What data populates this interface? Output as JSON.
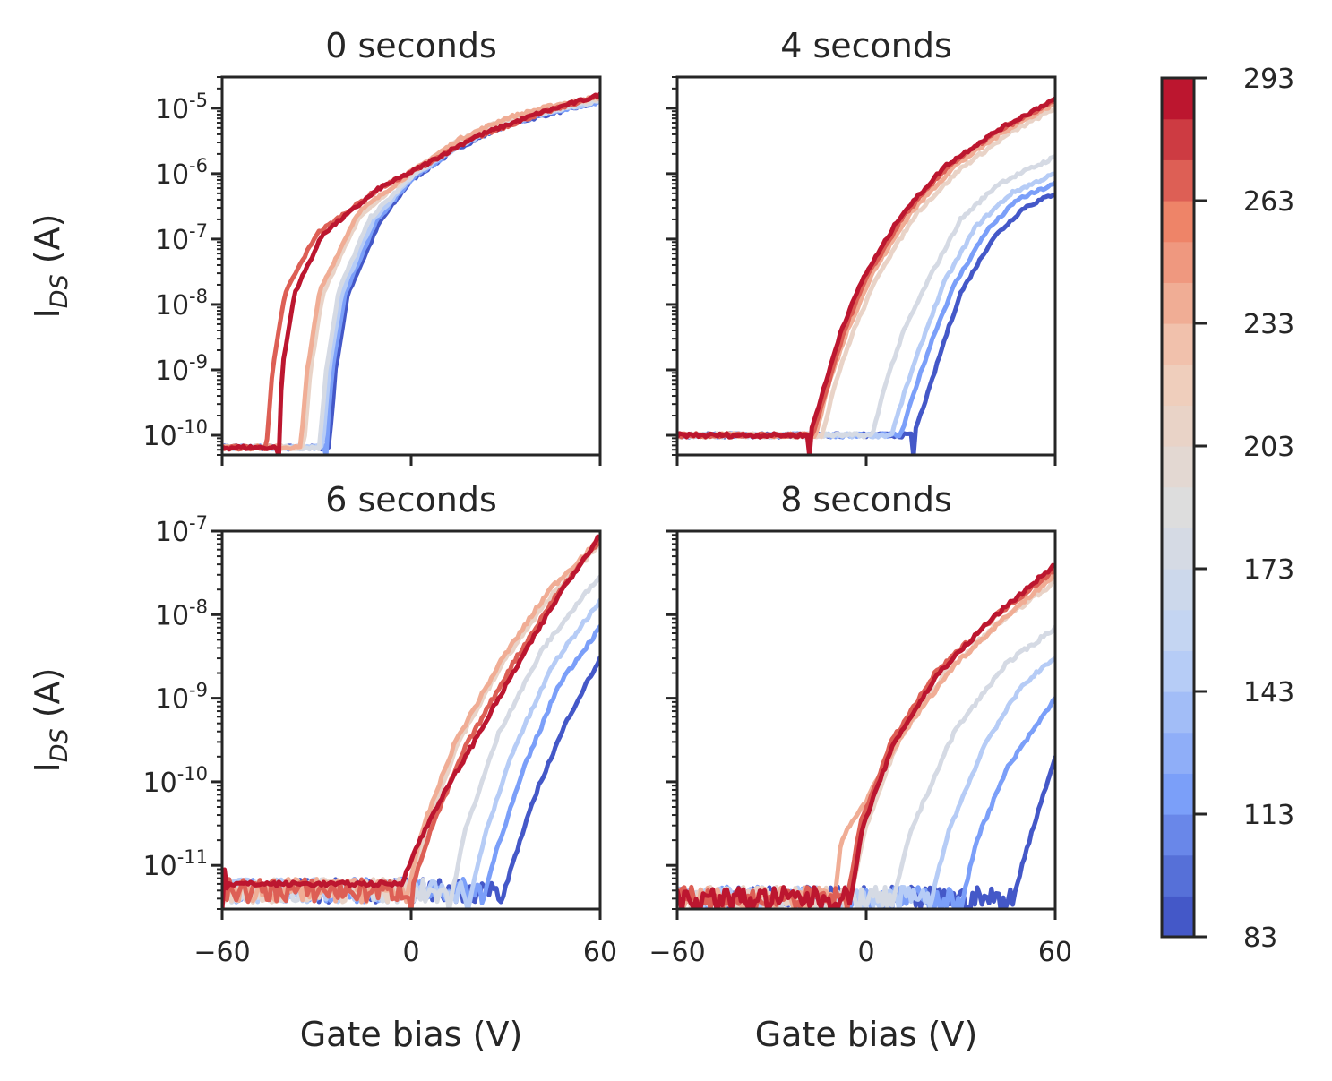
{
  "chart_data": {
    "type": "line",
    "shared_xlabel": "Gate bias (V)",
    "shared_ylabel": "I_DS (A)",
    "x_range": [
      -60,
      60
    ],
    "x_ticks": [
      "−60",
      "0",
      "60"
    ],
    "y_scale": "log",
    "legend": "colorbar-right",
    "grid": false,
    "colorbar": {
      "range": [
        83,
        293
      ],
      "ticks": [
        "83",
        "113",
        "143",
        "173",
        "203",
        "233",
        "263",
        "293"
      ],
      "colormap": "coolwarm",
      "colormap_colors": [
        "#3b4cc0",
        "#7b9ff9",
        "#c0d4f5",
        "#dddddd",
        "#f2cbb7",
        "#ee8468",
        "#b40426"
      ],
      "levels": 21
    },
    "panels": [
      {
        "title": "0 seconds",
        "ylim": [
          5e-11,
          3e-05
        ],
        "y_ticks": [
          1e-10,
          1e-09,
          1e-08,
          1e-07,
          1e-06,
          1e-05
        ],
        "y_ticklabels": [
          {
            "base": "10",
            "exp": "-10"
          },
          {
            "base": "10",
            "exp": "-9"
          },
          {
            "base": "10",
            "exp": "-8"
          },
          {
            "base": "10",
            "exp": "-7"
          },
          {
            "base": "10",
            "exp": "-6"
          },
          {
            "base": "10",
            "exp": "-5"
          }
        ],
        "floor": 6.5e-11,
        "series": [
          {
            "temp": 83,
            "x": [
              -26,
              -24,
              -20,
              -10,
              0,
              15,
              30,
              45,
              60
            ],
            "y": [
              7.5e-11,
              1e-09,
              1.5e-08,
              1.8e-07,
              8e-07,
              2.5e-06,
              5.5e-06,
              8.5e-06,
              1.25e-05
            ]
          },
          {
            "temp": 113,
            "x": [
              -27,
              -25,
              -21,
              -11,
              0,
              15,
              30,
              45,
              60
            ],
            "y": [
              7.5e-11,
              1e-09,
              1.5e-08,
              1.9e-07,
              8.3e-07,
              2.6e-06,
              5.6e-06,
              8.7e-06,
              1.27e-05
            ]
          },
          {
            "temp": 143,
            "x": [
              -28,
              -26,
              -22,
              -12,
              0,
              15,
              30,
              45,
              60
            ],
            "y": [
              7.5e-11,
              1e-09,
              1.5e-08,
              2e-07,
              8.6e-07,
              2.7e-06,
              5.8e-06,
              9e-06,
              1.3e-05
            ]
          },
          {
            "temp": 173,
            "x": [
              -29,
              -27,
              -23,
              -13,
              0,
              15,
              30,
              45,
              60
            ],
            "y": [
              7.5e-11,
              1e-09,
              1.6e-08,
              2.1e-07,
              9e-07,
              2.8e-06,
              6e-06,
              9.3e-06,
              1.33e-05
            ]
          },
          {
            "temp": 203,
            "x": [
              -34,
              -32,
              -28,
              -16,
              0,
              15,
              30,
              45,
              60
            ],
            "y": [
              7e-11,
              1e-09,
              1.5e-08,
              2.4e-07,
              1e-06,
              3.2e-06,
              6.8e-06,
              1.05e-05,
              1.45e-05
            ]
          },
          {
            "temp": 233,
            "x": [
              -35,
              -33,
              -29,
              -17,
              0,
              15,
              30,
              45,
              60
            ],
            "y": [
              7e-11,
              1e-09,
              1.6e-08,
              2.5e-07,
              1.05e-06,
              3.3e-06,
              7e-06,
              1.1e-05,
              1.5e-05
            ]
          },
          {
            "temp": 263,
            "x": [
              -46,
              -44,
              -40,
              -30,
              -10,
              0,
              20,
              40,
              60
            ],
            "y": [
              6.5e-11,
              1e-09,
              1.5e-08,
              1.2e-07,
              6e-07,
              1.05e-06,
              3.5e-06,
              8e-06,
              1.55e-05
            ]
          },
          {
            "temp": 293,
            "x": [
              -42,
              -41,
              -37,
              -28,
              -10,
              0,
              20,
              40,
              60
            ],
            "y": [
              6.5e-11,
              1e-09,
              1.5e-08,
              1.2e-07,
              6e-07,
              1.05e-06,
              3.6e-06,
              8.2e-06,
              1.6e-05
            ]
          }
        ]
      },
      {
        "title": "4 seconds",
        "ylim": [
          5e-11,
          3e-05
        ],
        "y_ticks": [
          1e-10,
          1e-09,
          1e-08,
          1e-07,
          1e-06,
          1e-05
        ],
        "y_ticklabels": [],
        "floor": 1e-10,
        "series": [
          {
            "temp": 83,
            "x": [
              15,
              20,
              25,
              30,
              40,
              50,
              60
            ],
            "y": [
              1e-10,
              5e-10,
              3e-09,
              1.5e-08,
              1e-07,
              3e-07,
              5e-07
            ]
          },
          {
            "temp": 113,
            "x": [
              11,
              16,
              22,
              28,
              38,
              48,
              60
            ],
            "y": [
              1e-10,
              6e-10,
              4e-09,
              2e-08,
              1.3e-07,
              4e-07,
              7e-07
            ]
          },
          {
            "temp": 143,
            "x": [
              8,
              13,
              19,
              25,
              35,
              46,
              60
            ],
            "y": [
              1e-10,
              6e-10,
              4e-09,
              2.3e-08,
              1.6e-07,
              5e-07,
              1e-06
            ]
          },
          {
            "temp": 173,
            "x": [
              2,
              6,
              12,
              20,
              30,
              42,
              60
            ],
            "y": [
              1e-10,
              6e-10,
              4e-09,
              2.5e-08,
              2e-07,
              7e-07,
              1.8e-06
            ]
          },
          {
            "temp": 203,
            "x": [
              -14,
              -10,
              -4,
              4,
              16,
              30,
              45,
              60
            ],
            "y": [
              1e-10,
              6e-10,
              4e-09,
              3e-08,
              2.5e-07,
              1.2e-06,
              4e-06,
              1e-05
            ]
          },
          {
            "temp": 233,
            "x": [
              -16,
              -12,
              -6,
              2,
              14,
              28,
              44,
              60
            ],
            "y": [
              1e-10,
              6e-10,
              4e-09,
              3e-08,
              2.5e-07,
              1.3e-06,
              4.5e-06,
              1.2e-05
            ]
          },
          {
            "temp": 263,
            "x": [
              -17,
              -12,
              -7,
              0,
              12,
              26,
              42,
              60
            ],
            "y": [
              1e-10,
              6e-10,
              4e-09,
              2.5e-08,
              2.3e-07,
              1.3e-06,
              4.5e-06,
              1.3e-05
            ]
          },
          {
            "temp": 293,
            "x": [
              -18,
              -13,
              -8,
              -1,
              11,
              25,
              42,
              60
            ],
            "y": [
              1e-10,
              6e-10,
              4e-09,
              2.5e-08,
              2.3e-07,
              1.3e-06,
              4.7e-06,
              1.4e-05
            ]
          }
        ]
      },
      {
        "title": "6 seconds",
        "ylim": [
          3e-12,
          1e-07
        ],
        "y_ticks": [
          1e-11,
          1e-10,
          1e-09,
          1e-08,
          1e-07
        ],
        "y_ticklabels": [
          {
            "base": "10",
            "exp": "-11"
          },
          {
            "base": "10",
            "exp": "-10"
          },
          {
            "base": "10",
            "exp": "-9"
          },
          {
            "base": "10",
            "exp": "-8"
          },
          {
            "base": "10",
            "exp": "-7"
          }
        ],
        "floor": 5e-12,
        "series": [
          {
            "temp": 83,
            "x": [
              28,
              32,
              40,
              50,
              60
            ],
            "y": [
              3e-12,
              1e-11,
              8e-11,
              6e-10,
              3e-09
            ]
          },
          {
            "temp": 113,
            "x": [
              22,
              27,
              36,
              47,
              60
            ],
            "y": [
              3e-12,
              1.5e-11,
              1.5e-10,
              1.5e-09,
              7e-09
            ]
          },
          {
            "temp": 143,
            "x": [
              18,
              23,
              32,
              45,
              60
            ],
            "y": [
              3e-12,
              2e-11,
              2.2e-10,
              2.5e-09,
              1.5e-08
            ]
          },
          {
            "temp": 173,
            "x": [
              12,
              17,
              28,
              42,
              60
            ],
            "y": [
              3e-12,
              2.5e-11,
              4e-10,
              4e-09,
              3e-08
            ]
          },
          {
            "temp": 203,
            "x": [
              0,
              5,
              15,
              30,
              45,
              60
            ],
            "y": [
              5e-12,
              3e-11,
              3e-10,
              3e-09,
              1.8e-08,
              7e-08
            ]
          },
          {
            "temp": 233,
            "x": [
              -1,
              4,
              14,
              29,
              44,
              60
            ],
            "y": [
              5e-12,
              3e-11,
              3e-10,
              3e-09,
              2e-08,
              8e-08
            ]
          },
          {
            "temp": 263,
            "x": [
              0,
              6,
              17,
              32,
              46,
              60
            ],
            "y": [
              5e-12,
              2.5e-11,
              2.5e-10,
              2.5e-09,
              1.7e-08,
              8e-08
            ]
          },
          {
            "temp": 293,
            "x": [
              -60,
              -59,
              -58,
              -3,
              0,
              8,
              20,
              35,
              48,
              60
            ],
            "y": [
              6e-11,
              5e-12,
              6e-12,
              6e-12,
              1.2e-11,
              5e-11,
              3e-10,
              3e-09,
              2e-08,
              9e-08
            ]
          }
        ]
      },
      {
        "title": "8 seconds",
        "ylim": [
          3e-12,
          1e-07
        ],
        "y_ticks": [
          1e-11,
          1e-10,
          1e-09,
          1e-08,
          1e-07
        ],
        "y_ticklabels": [],
        "floor": 4e-12,
        "series": [
          {
            "temp": 83,
            "x": [
              46,
              50,
              55,
              60
            ],
            "y": [
              3e-12,
              1.2e-11,
              5e-11,
              2e-10
            ]
          },
          {
            "temp": 113,
            "x": [
              30,
              35,
              45,
              60
            ],
            "y": [
              3e-12,
              2e-11,
              1.5e-10,
              1e-09
            ]
          },
          {
            "temp": 143,
            "x": [
              20,
              26,
              38,
              50,
              60
            ],
            "y": [
              3e-12,
              2.5e-11,
              3e-10,
              1.5e-09,
              3e-09
            ]
          },
          {
            "temp": 173,
            "x": [
              8,
              14,
              28,
              44,
              60
            ],
            "y": [
              3e-12,
              2.5e-11,
              4e-10,
              2.5e-09,
              7e-09
            ]
          },
          {
            "temp": 203,
            "x": [
              -5,
              0,
              10,
              25,
              42,
              60
            ],
            "y": [
              4e-12,
              3e-11,
              3e-10,
              2e-09,
              8e-09,
              2.5e-08
            ]
          },
          {
            "temp": 233,
            "x": [
              -10,
              -8,
              0,
              12,
              28,
              45,
              60
            ],
            "y": [
              4e-12,
              2e-11,
              6e-11,
              4e-10,
              2.5e-09,
              1e-08,
              3e-08
            ]
          },
          {
            "temp": 263,
            "x": [
              -6,
              -2,
              8,
              22,
              40,
              60
            ],
            "y": [
              4e-12,
              3e-11,
              3e-10,
              2e-09,
              9e-09,
              3.5e-08
            ]
          },
          {
            "temp": 293,
            "x": [
              -5,
              -1,
              9,
              23,
              40,
              60
            ],
            "y": [
              4e-12,
              3e-11,
              3e-10,
              2e-09,
              9e-09,
              4e-08
            ]
          }
        ]
      }
    ]
  }
}
